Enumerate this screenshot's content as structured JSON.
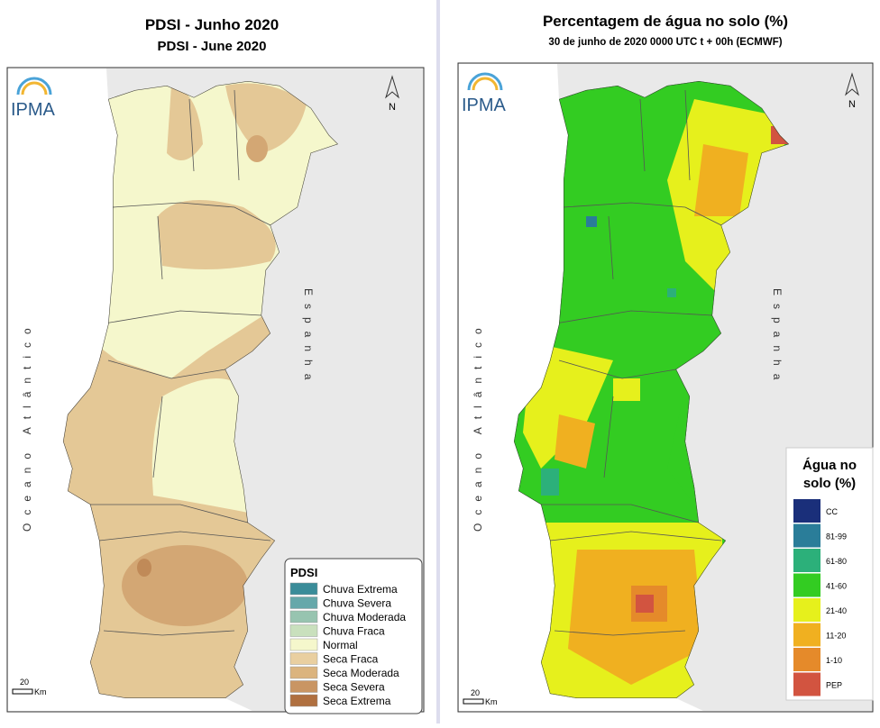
{
  "left": {
    "title": "PDSI - Junho 2020",
    "subtitle": "PDSI - June 2020",
    "logo": "IPMA",
    "ocean": "Oceano Atlântico",
    "country": "Espanha",
    "north": "N",
    "scale": "20",
    "scale_unit": "Km",
    "legend": {
      "title": "PDSI",
      "items": [
        {
          "label": "Chuva Extrema",
          "color": "#3a8c99"
        },
        {
          "label": "Chuva Severa",
          "color": "#66a8aa"
        },
        {
          "label": "Chuva Moderada",
          "color": "#97c4b0"
        },
        {
          "label": "Chuva Fraca",
          "color": "#c9e0bd"
        },
        {
          "label": "Normal",
          "color": "#f5f7cc"
        },
        {
          "label": "Seca Fraca",
          "color": "#e9cfa0"
        },
        {
          "label": "Seca Moderada",
          "color": "#dbb47e"
        },
        {
          "label": "Seca Severa",
          "color": "#c99563"
        },
        {
          "label": "Seca Extrema",
          "color": "#b07040"
        }
      ]
    }
  },
  "right": {
    "title": "Percentagem de água no solo (%)",
    "subtitle": "30 de junho de 2020 0000 UTC t + 00h (ECMWF)",
    "logo": "IPMA",
    "ocean": "Oceano Atlântico",
    "country": "Espanha",
    "north": "N",
    "scale": "20",
    "scale_unit": "Km",
    "legend": {
      "title_lines": [
        "Água no",
        "solo (%)"
      ],
      "items": [
        {
          "label": "CC",
          "color": "#1a2f7a"
        },
        {
          "label": "81-99",
          "color": "#2a7d99"
        },
        {
          "label": "61-80",
          "color": "#2cb07a"
        },
        {
          "label": "41-60",
          "color": "#33cc22"
        },
        {
          "label": "21-40",
          "color": "#e6f01c"
        },
        {
          "label": "11-20",
          "color": "#f0b020"
        },
        {
          "label": "1-10",
          "color": "#e58a2a"
        },
        {
          "label": "PEP",
          "color": "#d25440"
        }
      ]
    }
  }
}
